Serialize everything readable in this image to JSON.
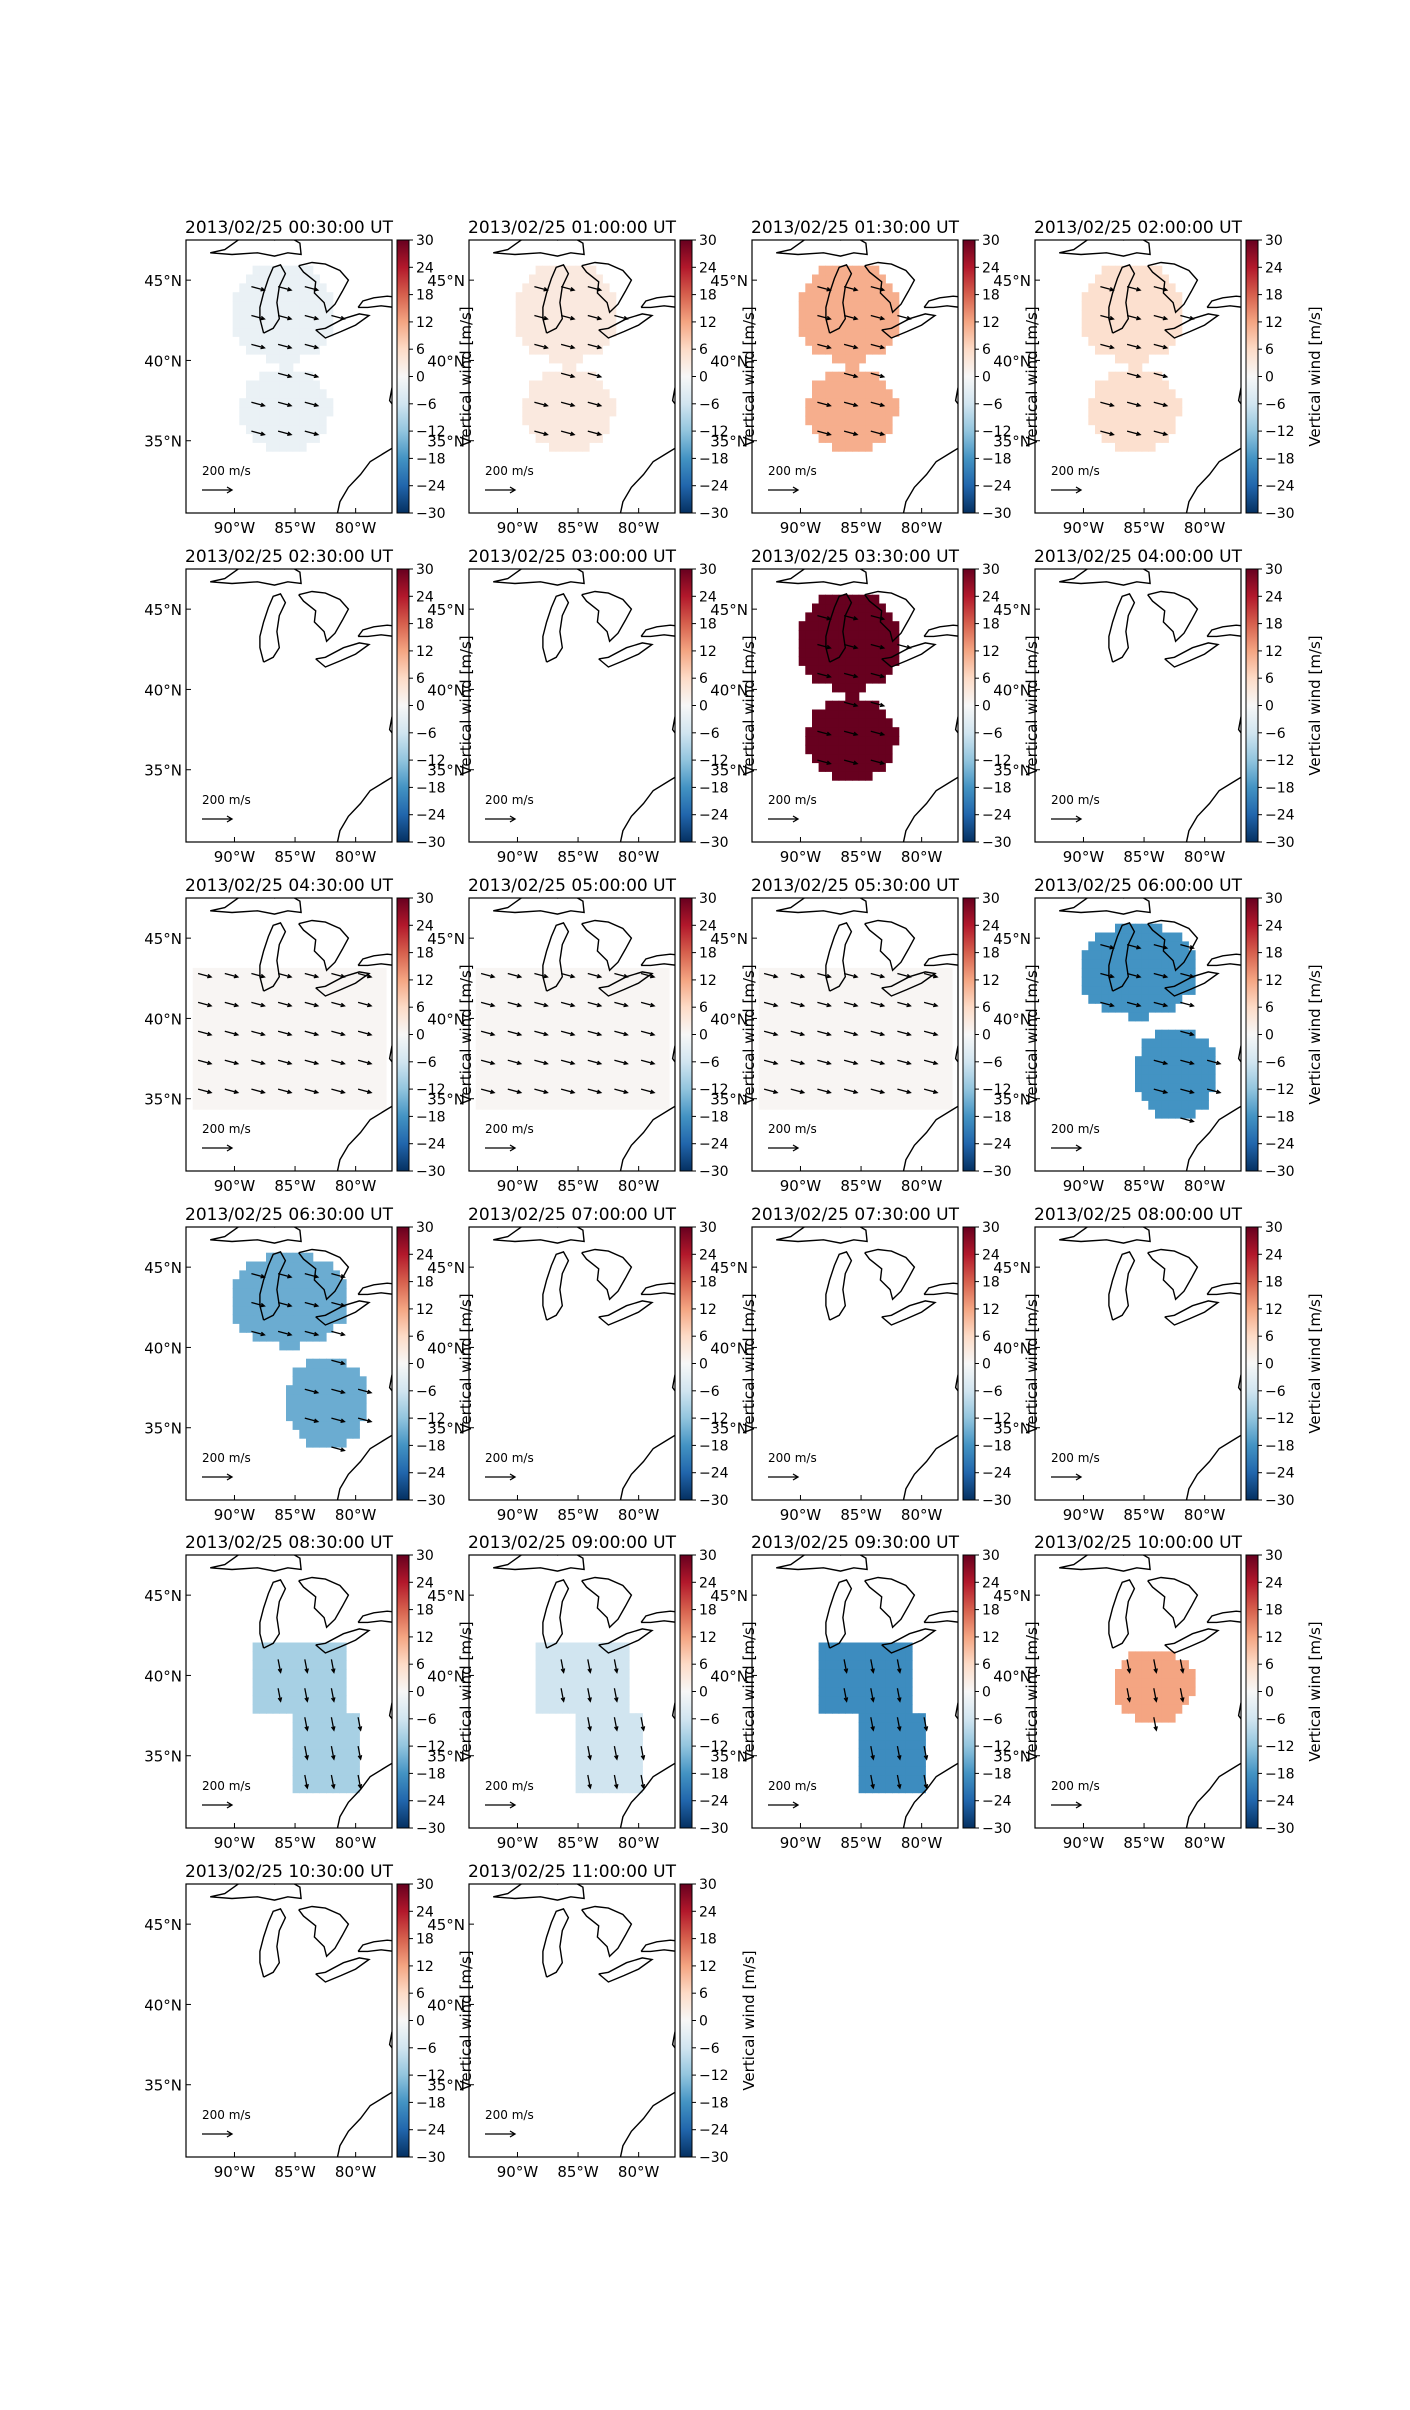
{
  "figure": {
    "colorbar": {
      "label": "Vertical wind [m/s]",
      "range": [
        -30,
        30
      ],
      "ticks": [
        "30",
        "24",
        "18",
        "12",
        "6",
        "0",
        "−6",
        "−12",
        "−18",
        "−24",
        "−30"
      ],
      "colormap": "RdBu_r",
      "stops": [
        "#053061",
        "#2166ac",
        "#4393c3",
        "#92c5de",
        "#d1e5f0",
        "#f7f7f7",
        "#fddbc7",
        "#f4a582",
        "#d6604d",
        "#b2182b",
        "#67001f"
      ]
    },
    "map": {
      "lat_ticks": [
        "45°N",
        "40°N",
        "35°N"
      ],
      "lon_ticks": [
        "90°W",
        "85°W",
        "80°W"
      ],
      "coastline_color": "#000000"
    },
    "reference_arrow_label": "200 m/s"
  },
  "chart_data": [
    {
      "type": "heatmap",
      "title": "2013/02/25 00:30:00 UT",
      "value": -2,
      "region": "two_blobs",
      "arrows": "east"
    },
    {
      "type": "heatmap",
      "title": "2013/02/25 01:00:00 UT",
      "value": 3,
      "region": "two_blobs",
      "arrows": "east"
    },
    {
      "type": "heatmap",
      "title": "2013/02/25 01:30:00 UT",
      "value": 11,
      "region": "two_blobs",
      "arrows": "east"
    },
    {
      "type": "heatmap",
      "title": "2013/02/25 02:00:00 UT",
      "value": 5,
      "region": "two_blobs",
      "arrows": "east"
    },
    {
      "type": "heatmap",
      "title": "2013/02/25 02:30:00 UT",
      "value": null,
      "region": "none",
      "arrows": "none"
    },
    {
      "type": "heatmap",
      "title": "2013/02/25 03:00:00 UT",
      "value": null,
      "region": "none",
      "arrows": "none"
    },
    {
      "type": "heatmap",
      "title": "2013/02/25 03:30:00 UT",
      "value": 30,
      "region": "two_blobs",
      "arrows": "east"
    },
    {
      "type": "heatmap",
      "title": "2013/02/25 04:00:00 UT",
      "value": null,
      "region": "none",
      "arrows": "none"
    },
    {
      "type": "heatmap",
      "title": "2013/02/25 04:30:00 UT",
      "value": 0.5,
      "region": "wide",
      "arrows": "east"
    },
    {
      "type": "heatmap",
      "title": "2013/02/25 05:00:00 UT",
      "value": 0.5,
      "region": "wide",
      "arrows": "east"
    },
    {
      "type": "heatmap",
      "title": "2013/02/25 05:30:00 UT",
      "value": 0.5,
      "region": "wide",
      "arrows": "east"
    },
    {
      "type": "heatmap",
      "title": "2013/02/25 06:00:00 UT",
      "value": -18,
      "region": "upper_lower",
      "arrows": "east"
    },
    {
      "type": "heatmap",
      "title": "2013/02/25 06:30:00 UT",
      "value": -15,
      "region": "upper_lower",
      "arrows": "east"
    },
    {
      "type": "heatmap",
      "title": "2013/02/25 07:00:00 UT",
      "value": null,
      "region": "none",
      "arrows": "none"
    },
    {
      "type": "heatmap",
      "title": "2013/02/25 07:30:00 UT",
      "value": null,
      "region": "none",
      "arrows": "none"
    },
    {
      "type": "heatmap",
      "title": "2013/02/25 08:00:00 UT",
      "value": null,
      "region": "none",
      "arrows": "none"
    },
    {
      "type": "heatmap",
      "title": "2013/02/25 08:30:00 UT",
      "value": -10,
      "region": "central",
      "arrows": "south"
    },
    {
      "type": "heatmap",
      "title": "2013/02/25 09:00:00 UT",
      "value": -6,
      "region": "central",
      "arrows": "south"
    },
    {
      "type": "heatmap",
      "title": "2013/02/25 09:30:00 UT",
      "value": -19,
      "region": "central",
      "arrows": "south"
    },
    {
      "type": "heatmap",
      "title": "2013/02/25 10:00:00 UT",
      "value": 12,
      "region": "small",
      "arrows": "south"
    },
    {
      "type": "heatmap",
      "title": "2013/02/25 10:30:00 UT",
      "value": null,
      "region": "none",
      "arrows": "none"
    },
    {
      "type": "heatmap",
      "title": "2013/02/25 11:00:00 UT",
      "value": null,
      "region": "none",
      "arrows": "none"
    }
  ]
}
